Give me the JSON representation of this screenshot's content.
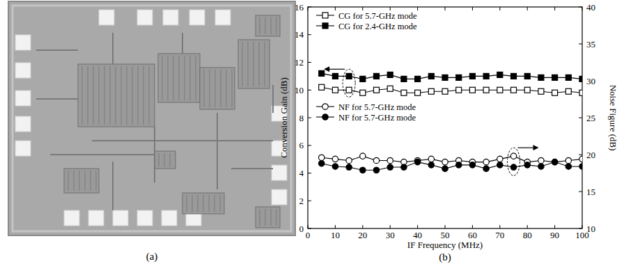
{
  "captions": [
    "(a)",
    "(b)"
  ],
  "chart_data": {
    "type": "line",
    "x_label": "IF Frequency (MHz)",
    "y_label": "Conversion Gain (dB)",
    "y2_label": "Noise Figure (dB)",
    "x": [
      5,
      10,
      15,
      20,
      25,
      30,
      35,
      40,
      45,
      50,
      55,
      60,
      65,
      70,
      75,
      80,
      85,
      90,
      95,
      100
    ],
    "xlim": [
      0,
      100
    ],
    "xticks": [
      0,
      10,
      20,
      30,
      40,
      50,
      60,
      70,
      80,
      90,
      100
    ],
    "ylim": [
      0,
      16
    ],
    "yticks": [
      0,
      2,
      4,
      6,
      8,
      10,
      12,
      14,
      16
    ],
    "y2lim": [
      10,
      40
    ],
    "y2ticks": [
      10,
      15,
      20,
      25,
      30,
      35,
      40
    ],
    "legend": "upper left",
    "grid": false,
    "series": [
      {
        "name": "CG for 5.7-GHz mode",
        "color": "#000000",
        "marker": "open-square",
        "line_style": "solid",
        "values": [
          10.2,
          10.0,
          10.0,
          9.8,
          10.0,
          10.1,
          9.8,
          9.8,
          9.9,
          9.9,
          10.0,
          10.0,
          10.0,
          10.0,
          10.0,
          10.0,
          9.9,
          9.8,
          9.9,
          9.8
        ]
      },
      {
        "name": "CG for 2.4-GHz mode",
        "color": "#000000",
        "marker": "square",
        "line_style": "solid",
        "values": [
          11.2,
          11.0,
          11.0,
          10.8,
          11.0,
          11.1,
          10.8,
          10.8,
          11.0,
          10.9,
          10.9,
          11.0,
          11.0,
          11.1,
          11.0,
          11.0,
          10.9,
          10.9,
          10.9,
          10.8
        ]
      },
      {
        "name": "NF for 5.7-GHz mode",
        "color": "#000000",
        "marker": "open-circle",
        "line_style": "solid",
        "axis": "y2",
        "values": [
          19.6,
          19.4,
          19.2,
          19.8,
          19.2,
          19.2,
          19.0,
          19.2,
          19.4,
          19.0,
          19.2,
          19.0,
          19.0,
          19.4,
          19.8,
          19.0,
          19.2,
          19.0,
          19.2,
          19.4
        ]
      },
      {
        "name": "NF for 5.7-GHz mode",
        "color": "#000000",
        "marker": "circle",
        "line_style": "solid",
        "axis": "y2",
        "values": [
          18.8,
          18.4,
          18.3,
          17.9,
          17.9,
          18.3,
          18.3,
          19.0,
          18.6,
          18.1,
          18.6,
          18.6,
          18.1,
          18.6,
          18.3,
          18.6,
          18.4,
          19.0,
          18.4,
          18.4
        ]
      }
    ]
  }
}
